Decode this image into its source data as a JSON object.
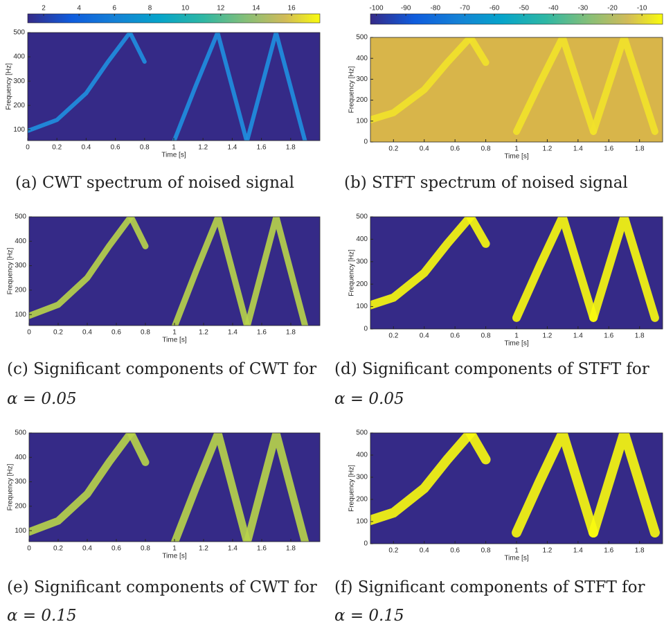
{
  "panels": [
    {
      "caption": "(a) CWT spectrum of noised signal",
      "xlabel": "Time [s]",
      "ylabel": "Frequency [Hz]",
      "xlim": [
        0,
        2
      ],
      "ylim": [
        55,
        500
      ],
      "xticks": [
        0,
        0.2,
        0.4,
        0.6,
        0.8,
        1,
        1.2,
        1.4,
        1.6,
        1.8
      ],
      "yticks": [
        100,
        200,
        300,
        400,
        500
      ],
      "colorbar": {
        "lim": [
          1.1,
          17.6
        ],
        "ticks": [
          2,
          4,
          6,
          8,
          10,
          12,
          14,
          16
        ]
      }
    },
    {
      "caption": "(b) STFT spectrum of noised signal",
      "xlabel": "Time [s]",
      "ylabel": "Frequency [Hz]",
      "xlim": [
        0.05,
        1.95
      ],
      "ylim": [
        0,
        500
      ],
      "xticks": [
        0.2,
        0.4,
        0.6,
        0.8,
        1,
        1.2,
        1.4,
        1.6,
        1.8
      ],
      "yticks": [
        0,
        100,
        200,
        300,
        400,
        500
      ],
      "colorbar": {
        "lim": [
          -102,
          -3
        ],
        "ticks": [
          -100,
          -90,
          -80,
          -70,
          -60,
          -50,
          -40,
          -30,
          -20,
          -10
        ]
      }
    },
    {
      "caption": "(c) Significant components of CWT for",
      "caption_math": "α = 0.05",
      "xlabel": "Time [s]",
      "ylabel": "Frequency [Hz]",
      "xlim": [
        0,
        2
      ],
      "ylim": [
        55,
        500
      ],
      "xticks": [
        0,
        0.2,
        0.4,
        0.6,
        0.8,
        1,
        1.2,
        1.4,
        1.6,
        1.8
      ],
      "yticks": [
        100,
        200,
        300,
        400,
        500
      ]
    },
    {
      "caption": "(d) Significant components of STFT for",
      "caption_math": "α = 0.05",
      "xlabel": "Time [s]",
      "ylabel": "Frequency [Hz]",
      "xlim": [
        0.05,
        1.95
      ],
      "ylim": [
        0,
        500
      ],
      "xticks": [
        0.2,
        0.4,
        0.6,
        0.8,
        1,
        1.2,
        1.4,
        1.6,
        1.8
      ],
      "yticks": [
        0,
        100,
        200,
        300,
        400,
        500
      ]
    },
    {
      "caption": "(e) Significant components of CWT for",
      "caption_math": "α = 0.15",
      "xlabel": "Time [s]",
      "ylabel": "Frequency [Hz]",
      "xlim": [
        0,
        2
      ],
      "ylim": [
        55,
        500
      ],
      "xticks": [
        0,
        0.2,
        0.4,
        0.6,
        0.8,
        1,
        1.2,
        1.4,
        1.6,
        1.8
      ],
      "yticks": [
        100,
        200,
        300,
        400,
        500
      ]
    },
    {
      "caption": "(f) Significant components of STFT for",
      "caption_math": "α = 0.15",
      "xlabel": "Time [s]",
      "ylabel": "Frequency [Hz]",
      "xlim": [
        0.05,
        1.95
      ],
      "ylim": [
        0,
        500
      ],
      "xticks": [
        0.2,
        0.4,
        0.6,
        0.8,
        1,
        1.2,
        1.4,
        1.6,
        1.8
      ],
      "yticks": [
        0,
        100,
        200,
        300,
        400,
        500
      ]
    }
  ]
}
